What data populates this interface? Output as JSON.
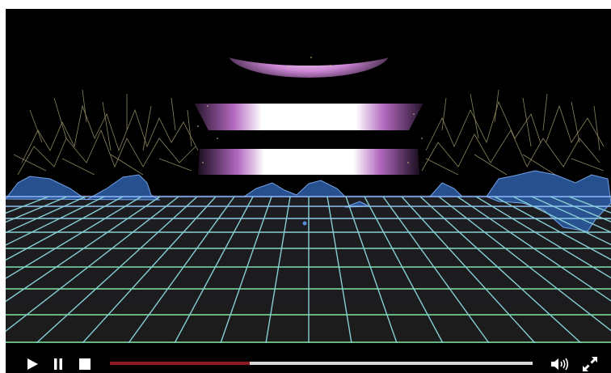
{
  "player": {
    "progress": 0.33,
    "buffered": 1.0,
    "colors": {
      "progress_fill": "#8e1b1f",
      "grid_near": "#7ee6a2",
      "grid_far": "#8fb6ff",
      "mountains": "#7fb2ff",
      "tower_glow": "#e7b8ee",
      "controls_icon": "#ffffff"
    }
  },
  "controls": {
    "play_icon": "play-icon",
    "pause_icon": "pause-icon",
    "stop_icon": "stop-icon",
    "volume_icon": "volume-icon",
    "fullscreen_icon": "fullscreen-icon"
  }
}
